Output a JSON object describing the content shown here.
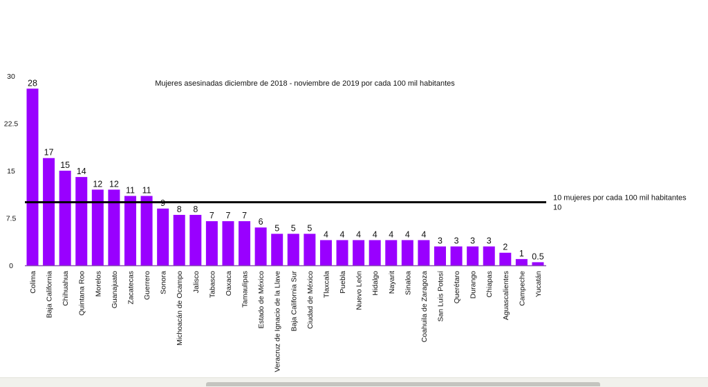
{
  "chart_data": {
    "type": "bar",
    "title": "Mujeres asesinadas diciembre de 2018 - noviembre de 2019 por cada 100 mil habitantes",
    "xlabel": "",
    "ylabel": "",
    "ylim": [
      0,
      30
    ],
    "yticks": [
      "0",
      "7.5",
      "15",
      "22.5",
      "30"
    ],
    "ytick_values": [
      0,
      7.5,
      15,
      22.5,
      30
    ],
    "grid": false,
    "bar_color": "#9900ff",
    "categories": [
      "Colima",
      "Baja California",
      "Chihuahua",
      "Quintana Roo",
      "Morelos",
      "Guanajuato",
      "Zacatecas",
      "Guerrero",
      "Sonora",
      "Michoacán de Ocampo",
      "Jalisco",
      "Tabasco",
      "Oaxaca",
      "Tamaulipas",
      "Estado de México",
      "Veracruz de Ignacio de la Llave",
      "Baja California Sur",
      "Ciudad de México",
      "Tlaxcala",
      "Puebla",
      "Nuevo León",
      "Hidalgo",
      "Nayarit",
      "Sinaloa",
      "Coahuila de Zaragoza",
      "San Luis Potosí",
      "Querétaro",
      "Durango",
      "Chiapas",
      "Aguascalientes",
      "Campeche",
      "Yucatán"
    ],
    "values": [
      28,
      17,
      15,
      14,
      12,
      12,
      11,
      11,
      9,
      8,
      8,
      7,
      7,
      7,
      6,
      5,
      5,
      5,
      4,
      4,
      4,
      4,
      4,
      4,
      4,
      3,
      3,
      3,
      3,
      2,
      1,
      0.5
    ],
    "value_labels": [
      "28",
      "17",
      "15",
      "14",
      "12",
      "12",
      "11",
      "11",
      "9",
      "8",
      "8",
      "7",
      "7",
      "7",
      "6",
      "5",
      "5",
      "5",
      "4",
      "4",
      "4",
      "4",
      "4",
      "4",
      "4",
      "3",
      "3",
      "3",
      "3",
      "2",
      "1",
      "0.5"
    ],
    "reference_line": {
      "value": 10,
      "label": "10 mujeres por cada 100 mil habitantes",
      "value_label": "10",
      "color": "#000000"
    }
  }
}
